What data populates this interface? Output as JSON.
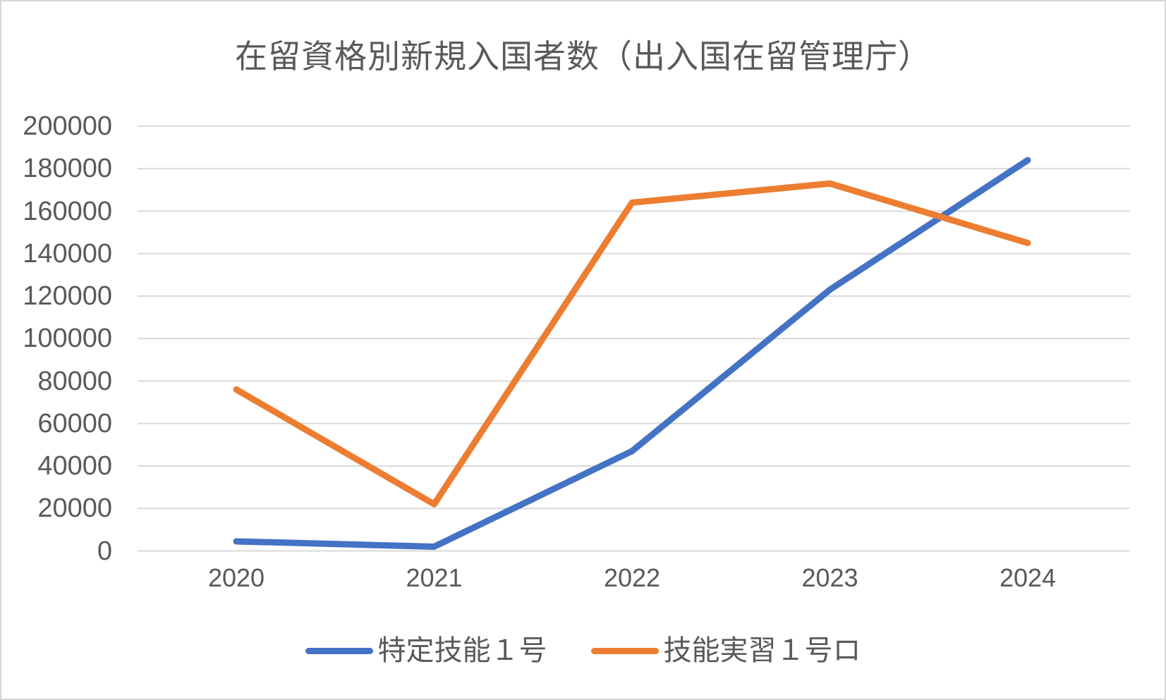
{
  "chart_data": {
    "type": "line",
    "title": "在留資格別新規入国者数（出入国在留管理庁）",
    "categories": [
      "2020",
      "2021",
      "2022",
      "2023",
      "2024"
    ],
    "series": [
      {
        "name": "特定技能１号",
        "color": "#4472C4",
        "values": [
          4500,
          2000,
          47000,
          123000,
          184000
        ]
      },
      {
        "name": "技能実習１号ロ",
        "color": "#ED7D31",
        "values": [
          76000,
          22000,
          164000,
          173000,
          145000
        ]
      }
    ],
    "xlabel": "",
    "ylabel": "",
    "ylim": [
      0,
      200000
    ],
    "yticks": [
      0,
      20000,
      40000,
      60000,
      80000,
      100000,
      120000,
      140000,
      160000,
      180000,
      200000
    ],
    "grid": true,
    "legend_position": "bottom",
    "colors": {
      "text": "#595959",
      "gridline": "#D9D9D9",
      "background": "#FFFFFF",
      "frame_border": "#D6D6D6"
    }
  }
}
